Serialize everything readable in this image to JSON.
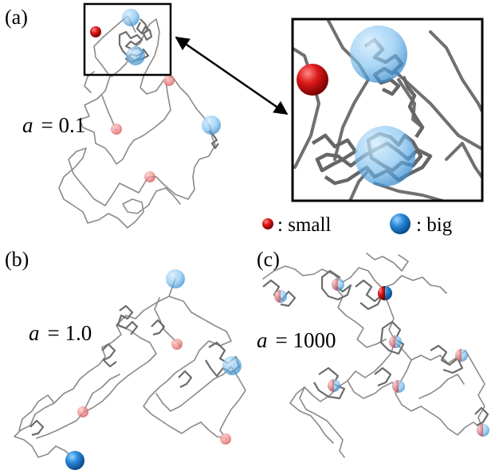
{
  "panels": [
    {
      "letter": "(a)",
      "param_symbol": "a",
      "param_value": "= 0.1"
    },
    {
      "letter": "(b)",
      "param_symbol": "a",
      "param_value": "= 1.0"
    },
    {
      "letter": "(c)",
      "param_symbol": "a",
      "param_value": "= 1000"
    }
  ],
  "legend": {
    "small_label": ": small",
    "big_label": ": big"
  },
  "colors": {
    "small_particle": "#cc1111",
    "big_particle": "#2f8fd8",
    "chain": "#8a8a8a"
  }
}
